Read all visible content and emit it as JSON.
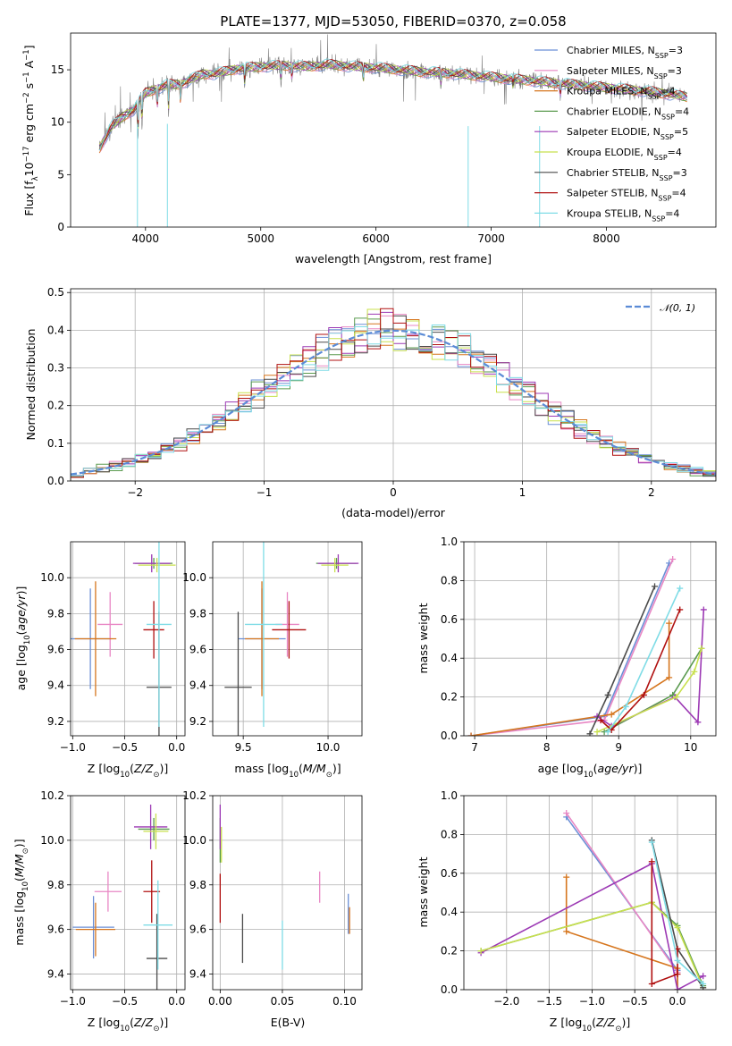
{
  "title": "PLATE=1377, MJD=53050, FIBERID=0370, z=0.058",
  "colors": {
    "Chabrier MILES": "#6b8fd6",
    "Salpeter MILES": "#e887c4",
    "Kroupa MILES": "#d6761e",
    "Chabrier ELODIE": "#5a9a4e",
    "Salpeter ELODIE": "#9c39b4",
    "Kroupa ELODIE": "#c8e04e",
    "Chabrier STELIB": "#4a4a4a",
    "Salpeter STELIB": "#b01010",
    "Kroupa STELIB": "#7fdce6"
  },
  "chart_data": [
    {
      "id": "spectrum",
      "type": "line",
      "title": "PLATE=1377, MJD=53050, FIBERID=0370, z=0.058",
      "xlabel": "wavelength [Angstrom, rest frame]",
      "ylabel": "Flux [f_λ 10^-17 erg cm^-2 s^-1 A^-1]",
      "xlim": [
        3350,
        8950
      ],
      "ylim": [
        0,
        18.5
      ],
      "xticks": [
        4000,
        5000,
        6000,
        7000,
        8000
      ],
      "yticks": [
        0,
        5,
        10,
        15
      ],
      "grid": false,
      "legend_position": "top-right",
      "data_series_name": "data",
      "data_color": "#808080",
      "model_color": "#7fdce6",
      "continuum": {
        "x": [
          3600,
          3700,
          3800,
          3900,
          4000,
          4100,
          4200,
          4300,
          4400,
          4500,
          4600,
          4800,
          5000,
          5200,
          5400,
          5600,
          5800,
          6000,
          6200,
          6400,
          6600,
          6800,
          7000,
          7200,
          7400,
          7600,
          7800,
          8000,
          8200,
          8400,
          8700
        ],
        "y": [
          7.5,
          9.5,
          10.5,
          11.2,
          12.8,
          13.2,
          13.6,
          13.6,
          14.1,
          14.6,
          14.6,
          15.1,
          15.3,
          15.4,
          15.3,
          15.5,
          15.3,
          15.2,
          15.0,
          14.8,
          14.7,
          14.5,
          14.3,
          14.1,
          13.9,
          13.7,
          13.5,
          13.3,
          13.1,
          12.9,
          12.4
        ]
      },
      "series": [
        {
          "name": "Chabrier MILES, N_SSP=3"
        },
        {
          "name": "Salpeter MILES, N_SSP=3"
        },
        {
          "name": "Kroupa MILES, N_SSP=4"
        },
        {
          "name": "Chabrier ELODIE, N_SSP=4"
        },
        {
          "name": "Salpeter ELODIE, N_SSP=5"
        },
        {
          "name": "Kroupa ELODIE, N_SSP=4"
        },
        {
          "name": "Chabrier STELIB, N_SSP=3"
        },
        {
          "name": "Salpeter STELIB, N_SSP=4"
        },
        {
          "name": "Kroupa STELIB, N_SSP=4"
        }
      ]
    },
    {
      "id": "residuals",
      "type": "bar",
      "xlabel": "(data-model)/error",
      "ylabel": "Normed distribution",
      "xlim": [
        -2.5,
        2.5
      ],
      "ylim": [
        0,
        0.51
      ],
      "xticks": [
        -2,
        -1,
        0,
        1,
        2
      ],
      "yticks": [
        0.0,
        0.1,
        0.2,
        0.3,
        0.4,
        0.5
      ],
      "grid": true,
      "legend_position": "top-right",
      "reference": {
        "name": "𝒩(0, 1)",
        "mean": 0,
        "sigma": 1,
        "color": "#5b8bd6"
      },
      "bin_width": 0.1,
      "series_note": "9 step histograms, one per model, colors as in spectrum legend"
    },
    {
      "id": "age_vs_Z",
      "type": "scatter",
      "xlabel": "Z [log10(Z/Z_sun)]",
      "ylabel": "age [log10(age/yr)]",
      "xlim": [
        -1.02,
        0.08
      ],
      "ylim": [
        9.12,
        10.2
      ],
      "xticks": [
        -1.0,
        -0.5,
        0.0
      ],
      "yticks": [
        9.2,
        9.4,
        9.6,
        9.8,
        10.0
      ],
      "grid": true,
      "points": [
        {
          "model": "Chabrier MILES",
          "x": -0.83,
          "y": 9.66,
          "xerr": 0.2,
          "yerr": 0.28
        },
        {
          "model": "Salpeter MILES",
          "x": -0.64,
          "y": 9.74,
          "xerr": 0.12,
          "yerr": 0.18
        },
        {
          "model": "Kroupa MILES",
          "x": -0.78,
          "y": 9.66,
          "xerr": 0.2,
          "yerr": 0.32
        },
        {
          "model": "Chabrier ELODIE",
          "x": -0.22,
          "y": 10.08,
          "xerr": 0.18,
          "yerr": 0.03
        },
        {
          "model": "Salpeter ELODIE",
          "x": -0.24,
          "y": 10.08,
          "xerr": 0.18,
          "yerr": 0.05
        },
        {
          "model": "Kroupa ELODIE",
          "x": -0.19,
          "y": 10.07,
          "xerr": 0.18,
          "yerr": 0.04
        },
        {
          "model": "Chabrier STELIB",
          "x": -0.17,
          "y": 9.39,
          "xerr": 0.12,
          "yerr": 0.42
        },
        {
          "model": "Salpeter STELIB",
          "x": -0.22,
          "y": 9.71,
          "xerr": 0.1,
          "yerr": 0.16
        },
        {
          "model": "Kroupa STELIB",
          "x": -0.17,
          "y": 9.74,
          "xerr": 0.12,
          "yerr": 0.57
        }
      ]
    },
    {
      "id": "age_vs_mass",
      "type": "scatter",
      "xlabel": "mass [log10(M/M_sun)]",
      "ylabel": "",
      "xlim": [
        9.32,
        10.2
      ],
      "ylim": [
        9.12,
        10.2
      ],
      "xticks": [
        9.5,
        10.0
      ],
      "yticks": [
        9.2,
        9.4,
        9.6,
        9.8,
        10.0
      ],
      "grid": true,
      "points": [
        {
          "model": "Chabrier MILES",
          "x": 9.61,
          "y": 9.66,
          "xerr": 0.14,
          "yerr": 0.28
        },
        {
          "model": "Salpeter MILES",
          "x": 9.76,
          "y": 9.74,
          "xerr": 0.07,
          "yerr": 0.18
        },
        {
          "model": "Kroupa MILES",
          "x": 9.61,
          "y": 9.66,
          "xerr": 0.1,
          "yerr": 0.32
        },
        {
          "model": "Chabrier ELODIE",
          "x": 10.05,
          "y": 10.08,
          "xerr": 0.12,
          "yerr": 0.03
        },
        {
          "model": "Salpeter ELODIE",
          "x": 10.06,
          "y": 10.08,
          "xerr": 0.12,
          "yerr": 0.05
        },
        {
          "model": "Kroupa ELODIE",
          "x": 10.04,
          "y": 10.07,
          "xerr": 0.08,
          "yerr": 0.04
        },
        {
          "model": "Chabrier STELIB",
          "x": 9.47,
          "y": 9.39,
          "xerr": 0.08,
          "yerr": 0.42
        },
        {
          "model": "Salpeter STELIB",
          "x": 9.77,
          "y": 9.71,
          "xerr": 0.1,
          "yerr": 0.16
        },
        {
          "model": "Kroupa STELIB",
          "x": 9.62,
          "y": 9.74,
          "xerr": 0.11,
          "yerr": 0.57
        }
      ]
    },
    {
      "id": "mass_weight_vs_age",
      "type": "line",
      "xlabel": "age [log10(age/yr)]",
      "ylabel": "mass weight",
      "xlim": [
        6.85,
        10.35
      ],
      "ylim": [
        0,
        1.0
      ],
      "xticks": [
        7,
        8,
        9,
        10
      ],
      "yticks": [
        0.0,
        0.2,
        0.4,
        0.6,
        0.8,
        1.0
      ],
      "grid": true,
      "series": [
        {
          "name": "Chabrier MILES",
          "x": [
            6.95,
            8.8,
            9.7
          ],
          "y": [
            0.0,
            0.1,
            0.89
          ]
        },
        {
          "name": "Salpeter MILES",
          "x": [
            6.95,
            8.8,
            9.75
          ],
          "y": [
            0.0,
            0.08,
            0.91
          ]
        },
        {
          "name": "Kroupa MILES",
          "x": [
            6.95,
            8.9,
            9.7,
            9.7
          ],
          "y": [
            0.0,
            0.11,
            0.3,
            0.58
          ]
        },
        {
          "name": "Chabrier ELODIE",
          "x": [
            8.8,
            9.75,
            10.15
          ],
          "y": [
            0.02,
            0.21,
            0.45
          ]
        },
        {
          "name": "Salpeter ELODIE",
          "x": [
            8.7,
            8.9,
            9.78,
            10.1,
            10.18
          ],
          "y": [
            0.1,
            0.05,
            0.2,
            0.07,
            0.65
          ]
        },
        {
          "name": "Kroupa ELODIE",
          "x": [
            8.7,
            9.8,
            10.05,
            10.15
          ],
          "y": [
            0.02,
            0.2,
            0.33,
            0.45
          ]
        },
        {
          "name": "Chabrier STELIB",
          "x": [
            8.6,
            8.85,
            9.5
          ],
          "y": [
            0.01,
            0.21,
            0.77
          ]
        },
        {
          "name": "Salpeter STELIB",
          "x": [
            8.75,
            8.9,
            9.35,
            9.85
          ],
          "y": [
            0.08,
            0.03,
            0.21,
            0.65
          ]
        },
        {
          "name": "Kroupa STELIB",
          "x": [
            8.85,
            9.1,
            9.85
          ],
          "y": [
            0.02,
            0.15,
            0.76
          ]
        }
      ]
    },
    {
      "id": "mass_vs_Z",
      "type": "scatter",
      "xlabel": "Z [log10(Z/Z_sun)]",
      "ylabel": "mass [log10(M/M_sun)]",
      "xlim": [
        -1.02,
        0.08
      ],
      "ylim": [
        9.33,
        10.2
      ],
      "xticks": [
        -1.0,
        -0.5,
        0.0
      ],
      "yticks": [
        9.4,
        9.6,
        9.8,
        10.0,
        10.2
      ],
      "grid": true,
      "points": [
        {
          "model": "Chabrier MILES",
          "x": -0.8,
          "y": 9.61,
          "xerr": 0.2,
          "yerr": 0.14
        },
        {
          "model": "Salpeter MILES",
          "x": -0.66,
          "y": 9.77,
          "xerr": 0.13,
          "yerr": 0.09
        },
        {
          "model": "Kroupa MILES",
          "x": -0.78,
          "y": 9.6,
          "xerr": 0.19,
          "yerr": 0.12
        },
        {
          "model": "Chabrier ELODIE",
          "x": -0.22,
          "y": 10.05,
          "xerr": 0.15,
          "yerr": 0.05
        },
        {
          "model": "Salpeter ELODIE",
          "x": -0.25,
          "y": 10.06,
          "xerr": 0.16,
          "yerr": 0.1
        },
        {
          "model": "Kroupa ELODIE",
          "x": -0.2,
          "y": 10.04,
          "xerr": 0.12,
          "yerr": 0.08
        },
        {
          "model": "Chabrier STELIB",
          "x": -0.19,
          "y": 9.47,
          "xerr": 0.1,
          "yerr": 0.2
        },
        {
          "model": "Salpeter STELIB",
          "x": -0.24,
          "y": 9.77,
          "xerr": 0.08,
          "yerr": 0.14
        },
        {
          "model": "Kroupa STELIB",
          "x": -0.18,
          "y": 9.62,
          "xerr": 0.14,
          "yerr": 0.2
        }
      ]
    },
    {
      "id": "mass_vs_ebv",
      "type": "scatter",
      "xlabel": "E(B-V)",
      "ylabel": "",
      "xlim": [
        -0.006,
        0.114
      ],
      "ylim": [
        9.33,
        10.2
      ],
      "xticks": [
        0.0,
        0.05,
        0.1
      ],
      "yticks": [
        9.4,
        9.6,
        9.8,
        10.0,
        10.2
      ],
      "grid": true,
      "points": [
        {
          "model": "Chabrier MILES",
          "x": 0.103,
          "y": 9.67,
          "yerr": 0.09
        },
        {
          "model": "Salpeter MILES",
          "x": 0.08,
          "y": 9.79,
          "yerr": 0.07
        },
        {
          "model": "Kroupa MILES",
          "x": 0.104,
          "y": 9.64,
          "yerr": 0.06
        },
        {
          "model": "Chabrier ELODIE",
          "x": 0.0,
          "y": 10.0,
          "yerr": 0.1
        },
        {
          "model": "Salpeter ELODIE",
          "x": 0.0,
          "y": 10.06,
          "yerr": 0.1
        },
        {
          "model": "Kroupa ELODIE",
          "x": 0.001,
          "y": 9.98,
          "yerr": 0.08
        },
        {
          "model": "Chabrier STELIB",
          "x": 0.018,
          "y": 9.56,
          "yerr": 0.11
        },
        {
          "model": "Salpeter STELIB",
          "x": 0.0,
          "y": 9.74,
          "yerr": 0.11
        },
        {
          "model": "Kroupa STELIB",
          "x": 0.05,
          "y": 9.53,
          "yerr": 0.11
        }
      ]
    },
    {
      "id": "mass_weight_vs_Z",
      "type": "line",
      "xlabel": "Z [log10(Z/Z_sun)]",
      "ylabel": "mass weight",
      "xlim": [
        -2.5,
        0.45
      ],
      "ylim": [
        0,
        1.0
      ],
      "xticks": [
        -2.0,
        -1.5,
        -1.0,
        -0.5,
        0.0
      ],
      "yticks": [
        0.0,
        0.2,
        0.4,
        0.6,
        0.8,
        1.0
      ],
      "grid": true,
      "series": [
        {
          "name": "Chabrier MILES",
          "x": [
            -1.3,
            0.0,
            0.0
          ],
          "y": [
            0.89,
            0.1,
            0.0
          ]
        },
        {
          "name": "Salpeter MILES",
          "x": [
            -1.3,
            0.0,
            0.0
          ],
          "y": [
            0.91,
            0.09,
            0.0
          ]
        },
        {
          "name": "Kroupa MILES",
          "x": [
            -1.3,
            -1.3,
            0.0,
            0.0
          ],
          "y": [
            0.58,
            0.3,
            0.11,
            0.0
          ]
        },
        {
          "name": "Chabrier ELODIE",
          "x": [
            -2.3,
            -0.3,
            0.0,
            0.3
          ],
          "y": [
            0.2,
            0.45,
            0.33,
            0.02
          ]
        },
        {
          "name": "Salpeter ELODIE",
          "x": [
            -2.3,
            -0.3,
            0.0,
            0.3
          ],
          "y": [
            0.19,
            0.65,
            0.0,
            0.07
          ]
        },
        {
          "name": "Kroupa ELODIE",
          "x": [
            -2.3,
            -0.3,
            0.0,
            0.3
          ],
          "y": [
            0.2,
            0.45,
            0.32,
            0.01
          ]
        },
        {
          "name": "Chabrier STELIB",
          "x": [
            -0.3,
            0.0,
            0.3
          ],
          "y": [
            0.77,
            0.21,
            0.01
          ]
        },
        {
          "name": "Salpeter STELIB",
          "x": [
            -0.3,
            -0.3,
            0.0,
            0.0
          ],
          "y": [
            0.66,
            0.03,
            0.08,
            0.21
          ]
        },
        {
          "name": "Kroupa STELIB",
          "x": [
            -0.3,
            0.0,
            0.3
          ],
          "y": [
            0.76,
            0.15,
            0.03
          ]
        }
      ]
    }
  ]
}
